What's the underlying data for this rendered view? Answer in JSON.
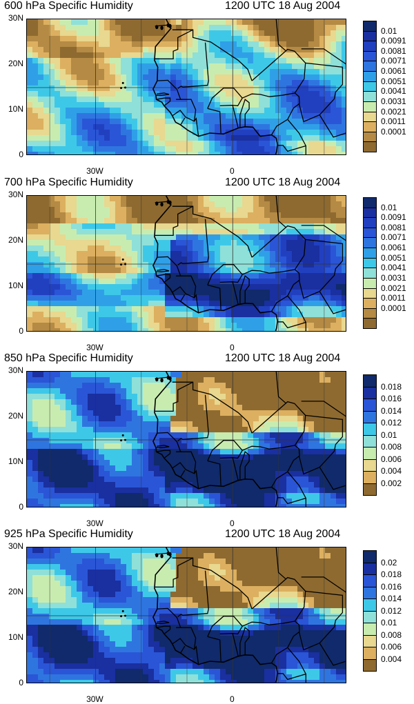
{
  "panels": [
    {
      "title_left": "600 hPa Specific Humidity",
      "title_right": "1200 UTC 18 Aug 2004",
      "y_ticks": [
        "30N",
        "20N",
        "10N",
        "0"
      ],
      "x_ticks": [
        "30W",
        "0"
      ],
      "legend_labels": [
        "0.01",
        "0.0091",
        "0.0081",
        "0.0071",
        "0.0061",
        "0.0051",
        "0.0041",
        "0.0031",
        "0.0021",
        "0.0011",
        "0.0001"
      ],
      "legend_colors": [
        "#102a6b",
        "#1a2fa0",
        "#2140c0",
        "#2a55d6",
        "#2f75e0",
        "#2fa0e8",
        "#3ec8e8",
        "#8fe0d8",
        "#c8ecb0",
        "#e8d890",
        "#dcb060",
        "#b48a44",
        "#8e6a30"
      ],
      "field_style": "dry"
    },
    {
      "title_left": "700 hPa Specific Humidity",
      "title_right": "1200 UTC 18 Aug 2004",
      "y_ticks": [
        "30N",
        "20N",
        "10N",
        "0"
      ],
      "x_ticks": [
        "30W",
        "0"
      ],
      "legend_labels": [
        "0.01",
        "0.0091",
        "0.0081",
        "0.0071",
        "0.0061",
        "0.0051",
        "0.0041",
        "0.0031",
        "0.0021",
        "0.0011",
        "0.0001"
      ],
      "legend_colors": [
        "#102a6b",
        "#1a2fa0",
        "#2140c0",
        "#2a55d6",
        "#2f75e0",
        "#2fa0e8",
        "#3ec8e8",
        "#8fe0d8",
        "#c8ecb0",
        "#e8d890",
        "#dcb060",
        "#b48a44",
        "#8e6a30"
      ],
      "field_style": "moist"
    },
    {
      "title_left": "850 hPa Specific Humidity",
      "title_right": "1200 UTC 18 Aug 2004",
      "y_ticks": [
        "30N",
        "20N",
        "10N",
        "0"
      ],
      "x_ticks": [
        "30W",
        "0"
      ],
      "legend_labels": [
        "0.018",
        "0.016",
        "0.014",
        "0.012",
        "0.01",
        "0.008",
        "0.006",
        "0.004",
        "0.002"
      ],
      "legend_colors": [
        "#102a6b",
        "#1a2fa0",
        "#2a55d6",
        "#2f75e0",
        "#3ec8e8",
        "#8fe0d8",
        "#c8ecb0",
        "#e8d890",
        "#dcb060",
        "#8e6a30"
      ],
      "field_style": "low"
    },
    {
      "title_left": "925 hPa Specific Humidity",
      "title_right": "1200 UTC 18 Aug 2004",
      "y_ticks": [
        "30N",
        "20N",
        "10N",
        "0"
      ],
      "x_ticks": [
        "30W",
        "0"
      ],
      "legend_labels": [
        "0.02",
        "0.018",
        "0.016",
        "0.014",
        "0.012",
        "0.01",
        "0.008",
        "0.006",
        "0.004"
      ],
      "legend_colors": [
        "#102a6b",
        "#1a2fa0",
        "#2a55d6",
        "#2f75e0",
        "#3ec8e8",
        "#8fe0d8",
        "#c8ecb0",
        "#e8d890",
        "#dcb060",
        "#8e6a30"
      ],
      "field_style": "low"
    }
  ]
}
